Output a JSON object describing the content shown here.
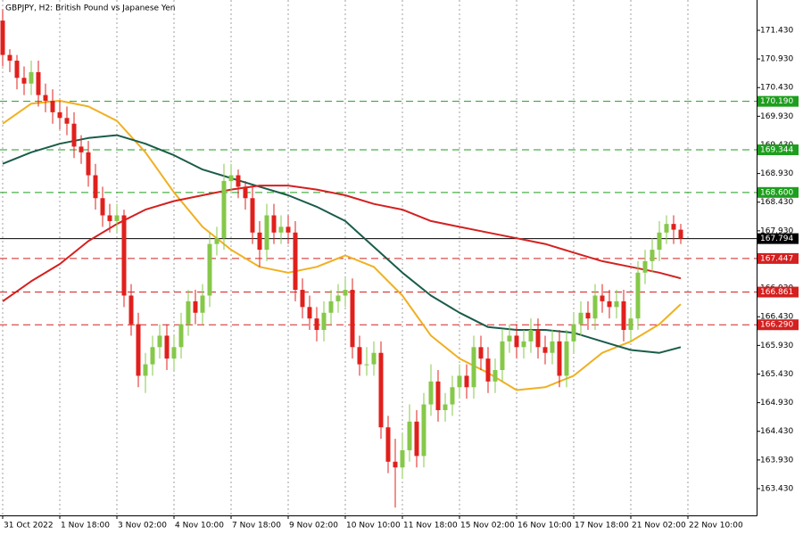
{
  "chart_data": {
    "type": "candlestick",
    "title": "GBPJPY, H2:  British Pound vs Japanese Yen",
    "up_color": "#86c84a",
    "down_color": "#e0201c",
    "grid": true,
    "open": [
      171.6,
      171.0,
      170.9,
      170.6,
      170.5,
      170.7,
      170.3,
      170.2,
      170.0,
      169.9,
      169.8,
      169.4,
      169.3,
      168.9,
      168.5,
      168.2,
      168.1,
      168.2,
      166.8,
      166.3,
      165.4,
      165.6,
      165.9,
      166.1,
      165.7,
      165.9,
      166.3,
      166.7,
      166.5,
      166.8,
      167.7,
      167.8,
      168.8,
      168.9,
      168.7,
      168.5,
      167.9,
      167.6,
      168.2,
      167.9,
      168.0,
      167.9,
      166.9,
      166.6,
      166.4,
      166.2,
      166.5,
      166.7,
      166.8,
      166.9,
      165.9,
      165.6,
      165.6,
      165.8,
      164.5,
      163.9,
      163.8,
      164.1,
      164.6,
      164.0,
      164.9,
      165.3,
      164.8,
      164.9,
      165.2,
      165.4,
      165.2,
      165.9,
      165.7,
      165.3,
      165.5,
      166.0,
      166.1,
      165.9,
      166.0,
      166.2,
      165.9,
      165.8,
      166.0,
      165.4,
      166.0,
      166.3,
      166.5,
      166.4,
      166.8,
      166.7,
      166.6,
      166.7,
      166.2,
      166.4,
      167.2,
      167.4,
      167.6,
      167.9,
      168.05,
      167.95
    ],
    "high": [
      171.8,
      171.1,
      171.0,
      170.8,
      170.9,
      170.9,
      170.5,
      170.4,
      170.2,
      170.1,
      170.0,
      169.6,
      169.5,
      169.1,
      168.7,
      168.4,
      168.4,
      168.3,
      167.0,
      166.5,
      165.8,
      166.1,
      166.3,
      166.3,
      166.1,
      166.5,
      166.9,
      166.9,
      167.0,
      167.9,
      168.0,
      169.1,
      169.1,
      169.0,
      168.8,
      168.7,
      168.1,
      168.4,
      168.4,
      168.2,
      168.2,
      168.1,
      167.1,
      166.8,
      166.6,
      166.7,
      166.9,
      167.0,
      167.1,
      167.1,
      166.1,
      165.9,
      166.0,
      166.0,
      164.7,
      164.3,
      164.4,
      164.9,
      164.8,
      165.1,
      165.6,
      165.5,
      165.1,
      165.4,
      165.6,
      165.6,
      166.1,
      166.1,
      165.9,
      165.7,
      166.2,
      166.3,
      166.3,
      166.2,
      166.4,
      166.4,
      166.1,
      166.2,
      166.2,
      166.2,
      166.5,
      166.7,
      166.7,
      167.0,
      167.0,
      166.9,
      166.9,
      166.9,
      166.6,
      167.4,
      167.6,
      167.8,
      168.1,
      168.2,
      168.2,
      168.05
    ],
    "low": [
      170.8,
      170.7,
      170.4,
      170.3,
      170.3,
      170.1,
      170.0,
      169.8,
      169.7,
      169.6,
      169.2,
      169.1,
      168.7,
      168.3,
      168.0,
      167.9,
      167.9,
      166.6,
      166.1,
      165.2,
      165.1,
      165.4,
      165.7,
      165.5,
      165.5,
      165.7,
      166.1,
      166.3,
      166.3,
      166.6,
      167.5,
      167.6,
      168.6,
      168.5,
      168.3,
      167.7,
      167.3,
      167.4,
      167.7,
      167.7,
      167.7,
      166.7,
      166.4,
      166.2,
      166.0,
      166.0,
      166.3,
      166.5,
      166.6,
      165.7,
      165.4,
      165.4,
      165.4,
      164.3,
      163.7,
      163.1,
      163.6,
      163.9,
      163.8,
      163.8,
      164.7,
      164.6,
      164.6,
      164.7,
      165.0,
      165.0,
      165.0,
      165.5,
      165.1,
      165.1,
      165.3,
      165.8,
      165.7,
      165.7,
      165.8,
      165.7,
      165.6,
      165.6,
      165.2,
      165.2,
      165.8,
      166.1,
      166.2,
      166.2,
      166.5,
      166.4,
      166.4,
      166.0,
      166.0,
      166.2,
      167.0,
      167.2,
      167.4,
      167.7,
      167.7,
      167.7
    ],
    "close": [
      171.0,
      170.9,
      170.6,
      170.5,
      170.7,
      170.3,
      170.2,
      170.0,
      169.9,
      169.8,
      169.4,
      169.3,
      168.9,
      168.5,
      168.2,
      168.1,
      168.2,
      166.8,
      166.3,
      165.4,
      165.6,
      165.9,
      166.1,
      165.7,
      165.9,
      166.3,
      166.7,
      166.5,
      166.8,
      167.7,
      167.8,
      168.8,
      168.9,
      168.7,
      168.5,
      167.9,
      167.6,
      168.2,
      167.9,
      168.0,
      167.9,
      166.9,
      166.6,
      166.4,
      166.2,
      166.5,
      166.7,
      166.8,
      166.9,
      165.9,
      165.6,
      165.6,
      165.8,
      164.5,
      163.9,
      163.8,
      164.1,
      164.6,
      164.0,
      164.9,
      165.3,
      164.8,
      164.9,
      165.2,
      165.4,
      165.2,
      165.9,
      165.7,
      165.3,
      165.5,
      166.0,
      166.1,
      165.9,
      166.0,
      166.2,
      165.9,
      165.8,
      166.0,
      165.4,
      166.0,
      166.3,
      166.5,
      166.4,
      166.8,
      166.7,
      166.6,
      166.7,
      166.2,
      166.4,
      167.2,
      167.4,
      167.6,
      167.9,
      168.05,
      167.95,
      167.794
    ],
    "overlays": [
      {
        "color": "#f0b020",
        "x": [
          0,
          4,
          8,
          12,
          16,
          20,
          24,
          28,
          32,
          36,
          40,
          44,
          48,
          52,
          56,
          60,
          64,
          68,
          72,
          76,
          80,
          84,
          88,
          92,
          95
        ],
        "values": [
          169.8,
          170.15,
          170.2,
          170.1,
          169.85,
          169.3,
          168.6,
          168.0,
          167.6,
          167.3,
          167.2,
          167.3,
          167.5,
          167.3,
          166.8,
          166.1,
          165.7,
          165.45,
          165.15,
          165.2,
          165.4,
          165.8,
          166.0,
          166.3,
          166.65
        ]
      },
      {
        "color": "#1a5c4a",
        "x": [
          0,
          4,
          8,
          12,
          16,
          20,
          24,
          28,
          32,
          36,
          40,
          44,
          48,
          52,
          56,
          60,
          64,
          68,
          72,
          76,
          80,
          84,
          88,
          92,
          95
        ],
        "values": [
          169.1,
          169.3,
          169.45,
          169.55,
          169.6,
          169.45,
          169.25,
          169.0,
          168.85,
          168.7,
          168.55,
          168.35,
          168.1,
          167.65,
          167.2,
          166.8,
          166.5,
          166.25,
          166.2,
          166.2,
          166.15,
          166.0,
          165.85,
          165.8,
          165.9
        ]
      },
      {
        "color": "#d42020",
        "x": [
          0,
          4,
          8,
          12,
          16,
          20,
          24,
          28,
          32,
          36,
          40,
          44,
          48,
          52,
          56,
          60,
          64,
          68,
          72,
          76,
          80,
          84,
          88,
          92,
          95
        ],
        "values": [
          166.7,
          167.05,
          167.35,
          167.75,
          168.05,
          168.3,
          168.45,
          168.55,
          168.65,
          168.72,
          168.72,
          168.65,
          168.55,
          168.4,
          168.3,
          168.1,
          168.0,
          167.9,
          167.8,
          167.7,
          167.55,
          167.4,
          167.3,
          167.2,
          167.1
        ]
      }
    ],
    "levels": [
      {
        "value": 170.19,
        "label": "170.190",
        "color": "#1e9e1e",
        "style": "dashed"
      },
      {
        "value": 169.344,
        "label": "169.344",
        "color": "#1e9e1e",
        "style": "dashed"
      },
      {
        "value": 168.6,
        "label": "168.600",
        "color": "#1e9e1e",
        "style": "dashed"
      },
      {
        "value": 167.794,
        "label": "167.794",
        "color": "#000000",
        "style": "solid"
      },
      {
        "value": 167.447,
        "label": "167.447",
        "color": "#d42020",
        "style": "dashed"
      },
      {
        "value": 166.861,
        "label": "166.861",
        "color": "#d42020",
        "style": "dashed"
      },
      {
        "value": 166.29,
        "label": "166.290",
        "color": "#d42020",
        "style": "dashed"
      }
    ],
    "xlim": [
      -0.375,
      105.625
    ],
    "xticks": [
      {
        "value": 0,
        "label": "31 Oct 2022"
      },
      {
        "value": 8,
        "label": "1 Nov 18:00"
      },
      {
        "value": 16,
        "label": "3 Nov 02:00"
      },
      {
        "value": 24,
        "label": "4 Nov 10:00"
      },
      {
        "value": 32,
        "label": "7 Nov 18:00"
      },
      {
        "value": 40,
        "label": "9 Nov 02:00"
      },
      {
        "value": 48,
        "label": "10 Nov 10:00"
      },
      {
        "value": 56,
        "label": "11 Nov 18:00"
      },
      {
        "value": 64,
        "label": "15 Nov 02:00"
      },
      {
        "value": 72,
        "label": "16 Nov 10:00"
      },
      {
        "value": 80,
        "label": "17 Nov 18:00"
      },
      {
        "value": 88,
        "label": "21 Nov 02:00"
      },
      {
        "value": 96,
        "label": "22 Nov 10:00"
      }
    ],
    "ylim": [
      162.963,
      171.959
    ],
    "yticks": [
      {
        "value": 171.43,
        "label": "171.430"
      },
      {
        "value": 170.93,
        "label": "170.930"
      },
      {
        "value": 170.43,
        "label": "170.430"
      },
      {
        "value": 169.93,
        "label": "169.930"
      },
      {
        "value": 169.43,
        "label": "169.430"
      },
      {
        "value": 168.93,
        "label": "168.930"
      },
      {
        "value": 168.43,
        "label": "168.430"
      },
      {
        "value": 167.93,
        "label": "167.930"
      },
      {
        "value": 167.43,
        "label": "167.430"
      },
      {
        "value": 166.93,
        "label": "166.930"
      },
      {
        "value": 166.43,
        "label": "166.430"
      },
      {
        "value": 165.93,
        "label": "165.930"
      },
      {
        "value": 165.43,
        "label": "165.430"
      },
      {
        "value": 164.93,
        "label": "164.930"
      },
      {
        "value": 164.43,
        "label": "164.430"
      },
      {
        "value": 163.93,
        "label": "163.930"
      },
      {
        "value": 163.43,
        "label": "163.430"
      }
    ]
  }
}
